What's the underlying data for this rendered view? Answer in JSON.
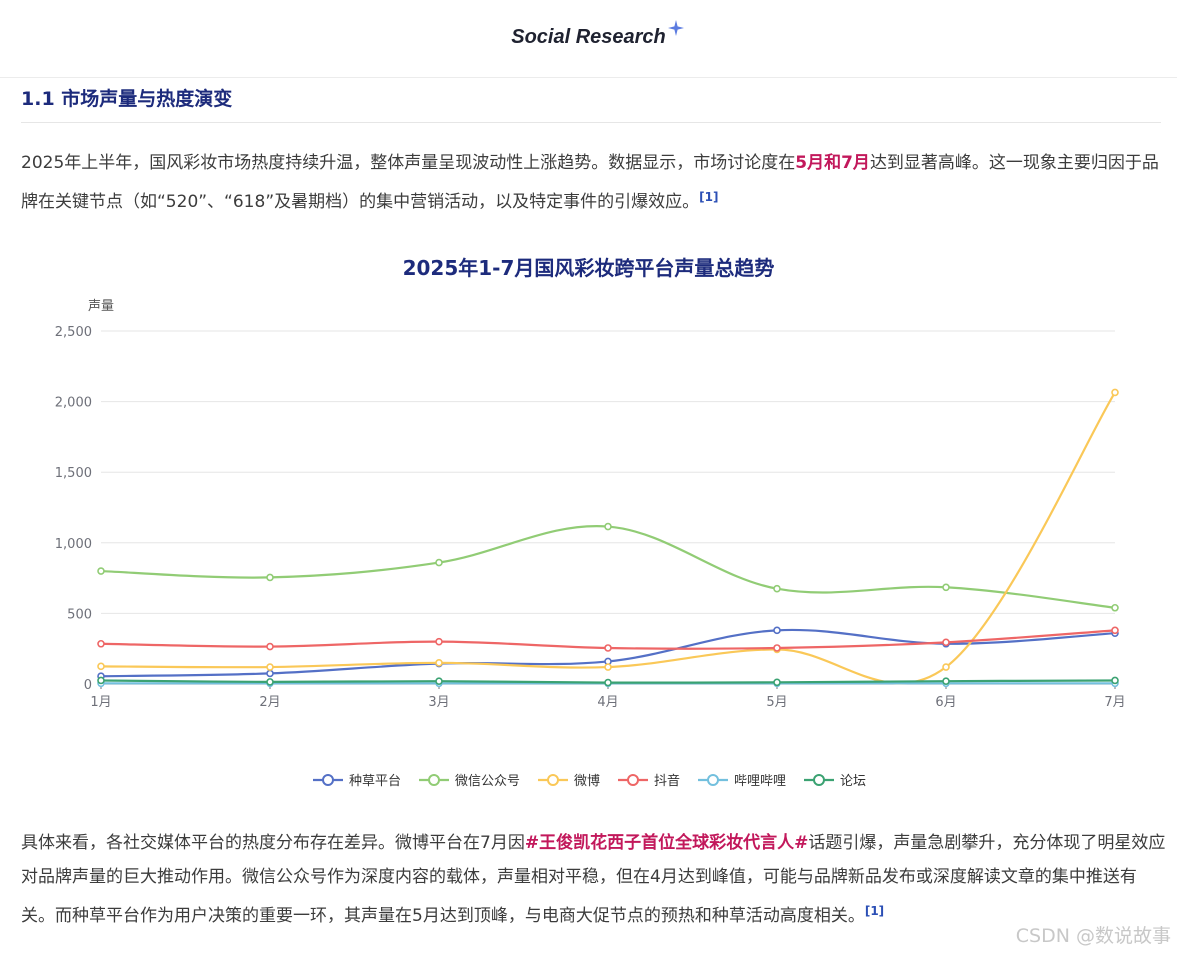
{
  "header": {
    "brand": "Social Research",
    "spark_color": "#5b7be0"
  },
  "section": {
    "title": "1.1 市场声量与热度演变"
  },
  "paragraph1": {
    "text_before": "2025年上半年，国风彩妆市场热度持续升温，整体声量呈现波动性上涨趋势。数据显示，市场讨论度在",
    "highlight": "5月和7月",
    "text_after": "达到显著高峰。这一现象主要归因于品牌在关键节点（如“520”、“618”及暑期档）的集中营销活动，以及特定事件的引爆效应。",
    "cite": "[1]"
  },
  "paragraph2": {
    "text_before": "具体来看，各社交媒体平台的热度分布存在差异。微博平台在7月因",
    "highlight": "#王俊凯花西子首位全球彩妆代言人#",
    "text_after": "话题引爆，声量急剧攀升，充分体现了明星效应对品牌声量的巨大推动作用。微信公众号作为深度内容的载体，声量相对平稳，但在4月达到峰值，可能与品牌新品发布或深度解读文章的集中推送有关。而种草平台作为用户决策的重要一环，其声量在5月达到顶峰，与电商大促节点的预热和种草活动高度相关。",
    "cite": "[1]"
  },
  "watermark": "CSDN @数说故事",
  "chart_data": {
    "type": "line",
    "title": "2025年1-7月国风彩妆跨平台声量总趋势",
    "xlabel": "",
    "ylabel": "声量",
    "categories": [
      "1月",
      "2月",
      "3月",
      "4月",
      "5月",
      "6月",
      "7月"
    ],
    "ylim": [
      0,
      2500
    ],
    "yticks": [
      0,
      500,
      1000,
      1500,
      2000,
      2500
    ],
    "ytick_labels": [
      "0",
      "500",
      "1,000",
      "1,500",
      "2,000",
      "2,500"
    ],
    "grid": true,
    "smooth": true,
    "legend_position": "bottom",
    "series": [
      {
        "name": "种草平台",
        "color": "#5470c6",
        "values": [
          55,
          75,
          145,
          160,
          380,
          285,
          360
        ]
      },
      {
        "name": "微信公众号",
        "color": "#91cc75",
        "values": [
          800,
          755,
          860,
          1115,
          675,
          685,
          540
        ]
      },
      {
        "name": "微博",
        "color": "#fac858",
        "values": [
          125,
          120,
          150,
          120,
          245,
          120,
          2065
        ]
      },
      {
        "name": "抖音",
        "color": "#ee6666",
        "values": [
          285,
          265,
          300,
          255,
          255,
          295,
          380
        ]
      },
      {
        "name": "哔哩哔哩",
        "color": "#73c0de",
        "values": [
          5,
          5,
          5,
          5,
          5,
          5,
          5
        ]
      },
      {
        "name": "论坛",
        "color": "#3ba272",
        "values": [
          25,
          15,
          20,
          10,
          12,
          20,
          25
        ]
      }
    ]
  }
}
